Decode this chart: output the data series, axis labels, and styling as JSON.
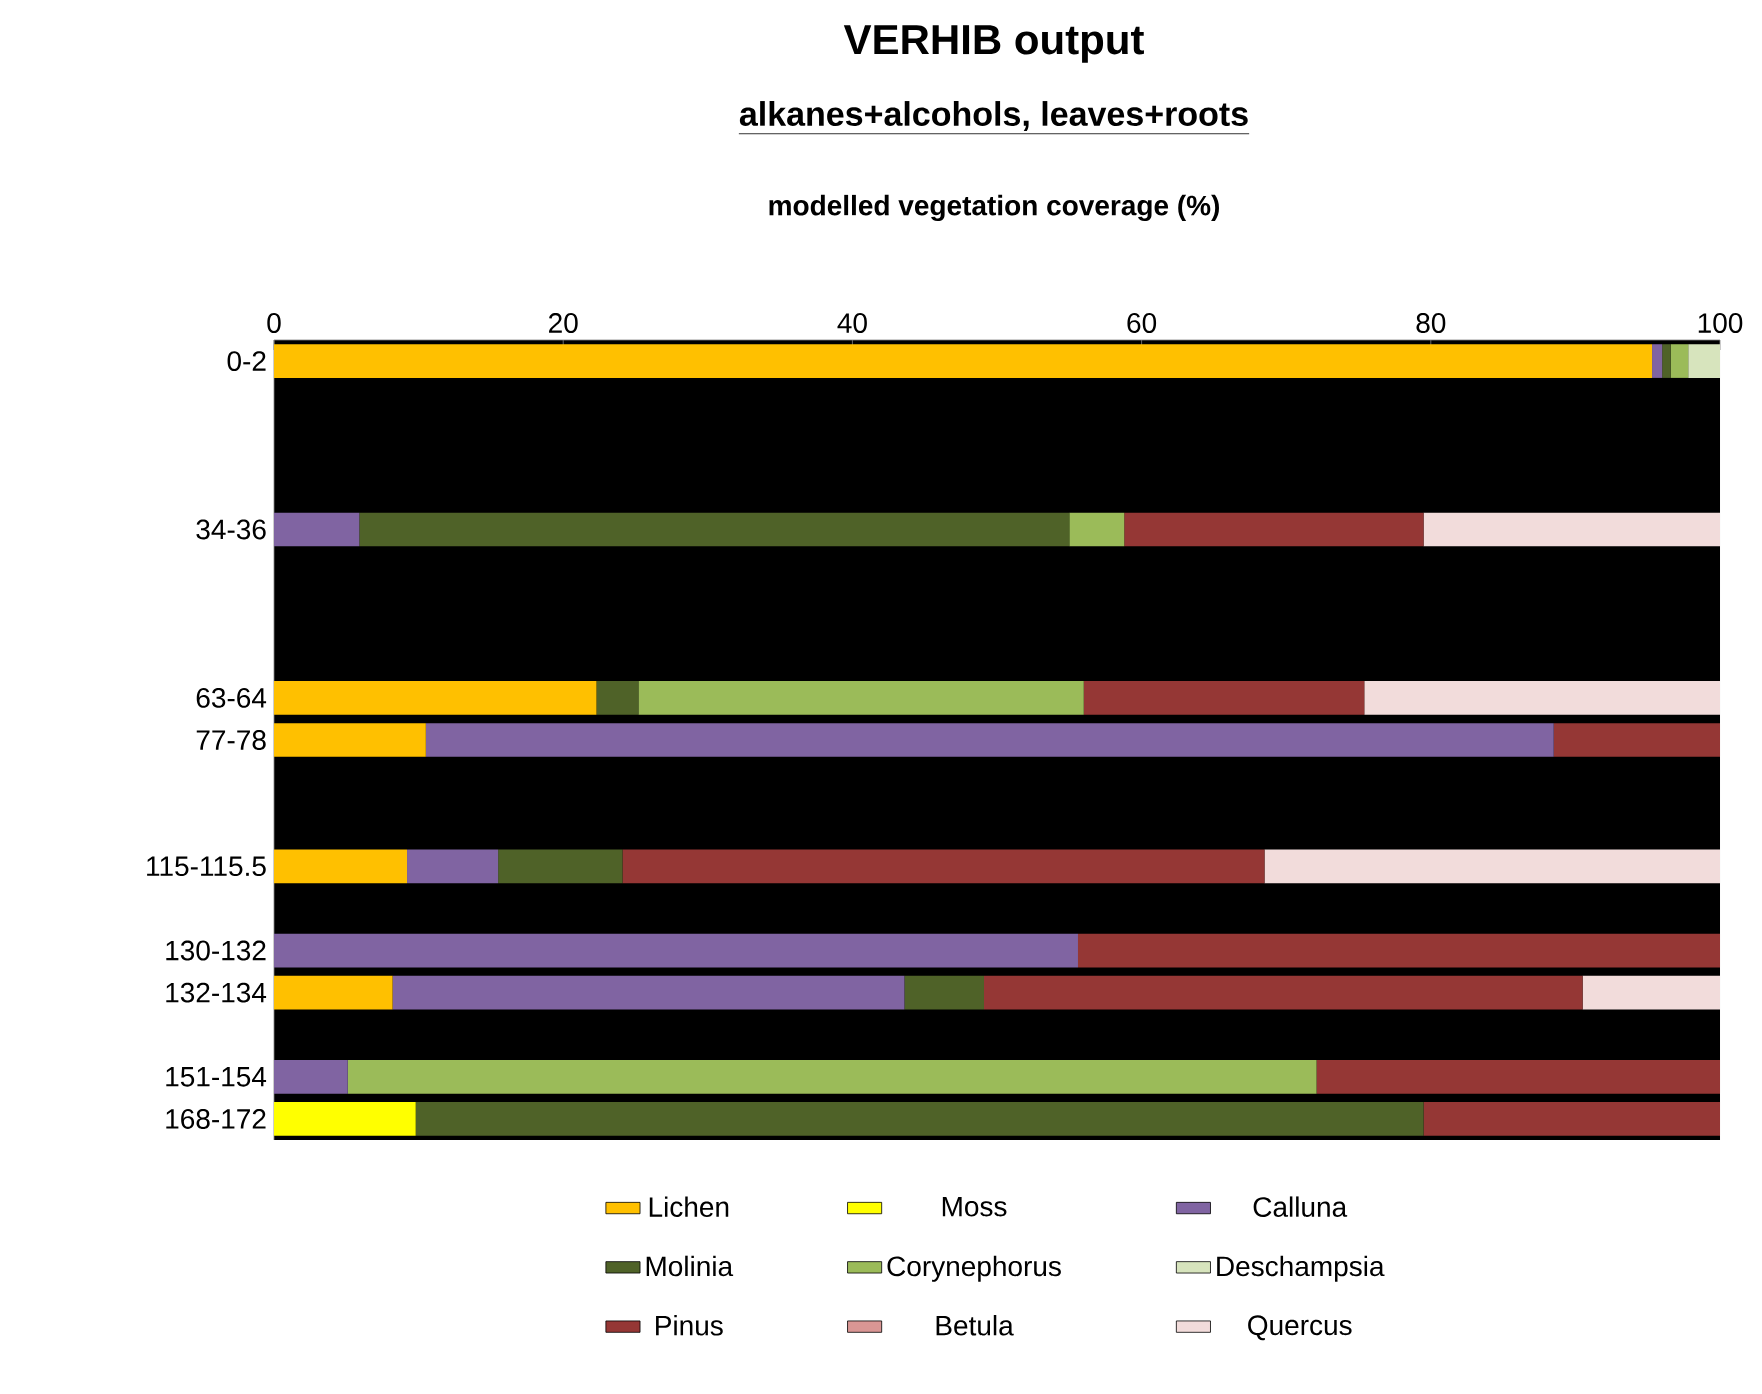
{
  "chart_data": {
    "type": "bar",
    "orientation": "horizontal",
    "stacked": true,
    "title": "VERHIB output",
    "subtitle": "alkanes+alcohols, leaves+roots",
    "xlabel": "modelled vegetation coverage (%)",
    "categories": [
      "0-2",
      null,
      null,
      null,
      "34-36",
      null,
      null,
      null,
      "63-64",
      "77-78",
      null,
      null,
      "115-115.5",
      null,
      "130-132",
      "132-134",
      null,
      "151-154",
      "168-172"
    ],
    "xlim": [
      0,
      100
    ],
    "xticks": [
      0,
      20,
      40,
      60,
      80,
      100
    ],
    "legend": "bottom",
    "series": [
      {
        "name": "Lichen",
        "color": "#ffc000",
        "values": [
          95.3,
          null,
          null,
          null,
          null,
          null,
          null,
          null,
          22.3,
          10.5,
          null,
          null,
          9.2,
          null,
          null,
          8.2,
          null,
          null,
          null
        ]
      },
      {
        "name": "Moss",
        "color": "#ffff00",
        "values": [
          null,
          null,
          null,
          null,
          null,
          null,
          null,
          null,
          null,
          null,
          null,
          null,
          null,
          null,
          null,
          null,
          null,
          null,
          9.8
        ]
      },
      {
        "name": "Calluna",
        "color": "#8064a2",
        "values": [
          0.7,
          null,
          null,
          null,
          5.9,
          null,
          null,
          null,
          null,
          78.0,
          null,
          null,
          6.3,
          null,
          55.6,
          35.4,
          null,
          5.1,
          null
        ]
      },
      {
        "name": "Molinia",
        "color": "#4f6228",
        "values": [
          0.6,
          null,
          null,
          null,
          49.1,
          null,
          null,
          null,
          2.9,
          null,
          null,
          null,
          8.6,
          null,
          null,
          5.5,
          null,
          null,
          69.7
        ]
      },
      {
        "name": "Corynephorus",
        "color": "#9bbb59",
        "values": [
          1.2,
          null,
          null,
          null,
          3.8,
          null,
          null,
          null,
          30.8,
          null,
          null,
          null,
          null,
          null,
          null,
          null,
          null,
          67.0,
          null
        ]
      },
      {
        "name": "Deschampsia",
        "color": "#d7e4bd",
        "values": [
          2.2,
          null,
          null,
          null,
          null,
          null,
          null,
          null,
          null,
          null,
          null,
          null,
          null,
          null,
          null,
          null,
          null,
          null,
          null
        ]
      },
      {
        "name": "Pinus",
        "color": "#953735",
        "values": [
          null,
          null,
          null,
          null,
          20.7,
          null,
          null,
          null,
          19.4,
          11.5,
          null,
          null,
          44.4,
          null,
          44.4,
          41.4,
          null,
          27.9,
          20.5
        ]
      },
      {
        "name": "Betula",
        "color": "#d99694",
        "values": [
          null,
          null,
          null,
          null,
          null,
          null,
          null,
          null,
          null,
          null,
          null,
          null,
          null,
          null,
          null,
          null,
          null,
          null,
          null
        ]
      },
      {
        "name": "Quercus",
        "color": "#f2dcdb",
        "values": [
          null,
          null,
          null,
          null,
          20.5,
          null,
          null,
          null,
          24.6,
          null,
          null,
          null,
          31.5,
          null,
          null,
          9.5,
          null,
          null,
          null
        ]
      }
    ]
  }
}
